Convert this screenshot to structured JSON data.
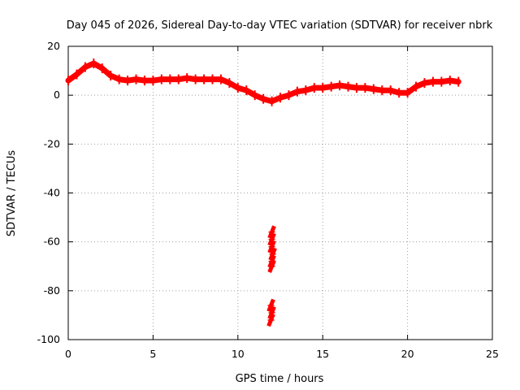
{
  "chart_data": {
    "type": "line",
    "title": "Day 045 of 2026, Sidereal Day-to-day VTEC variation (SDTVAR) for receiver nbrk",
    "xlabel": "GPS time / hours",
    "ylabel": "SDTVAR / TECUs",
    "xlim": [
      0,
      25
    ],
    "ylim": [
      -100,
      20
    ],
    "xticks": [
      "0",
      "5",
      "10",
      "15",
      "20",
      "25"
    ],
    "yticks": [
      "20",
      "0",
      "-20",
      "-40",
      "-60",
      "-80",
      "-100"
    ],
    "grid": true,
    "series": [
      {
        "name": "SDTVAR",
        "color": "#ff0000",
        "x": [
          0.0,
          0.5,
          1.0,
          1.5,
          2.0,
          2.5,
          3.0,
          3.5,
          4.0,
          4.5,
          5.0,
          5.5,
          6.0,
          6.5,
          7.0,
          7.5,
          8.0,
          8.5,
          9.0,
          9.5,
          10.0,
          10.5,
          11.0,
          11.5,
          12.0,
          12.5,
          13.0,
          13.5,
          14.0,
          14.5,
          15.0,
          15.5,
          16.0,
          16.5,
          17.0,
          17.5,
          18.0,
          18.5,
          19.0,
          19.5,
          20.0,
          20.5,
          21.0,
          21.5,
          22.0,
          22.5,
          23.0
        ],
        "y": [
          6,
          8.5,
          11.5,
          13,
          11,
          8,
          6.5,
          6,
          6.5,
          6,
          6,
          6.5,
          6.5,
          6.5,
          7,
          6.5,
          6.5,
          6.5,
          6.5,
          5,
          3,
          2,
          0,
          -1.5,
          -2.5,
          -1,
          0,
          1.5,
          2,
          3,
          3,
          3.5,
          4,
          3.5,
          3,
          3,
          2.5,
          2,
          2,
          1,
          1,
          3.5,
          5,
          5.5,
          5.5,
          6,
          5.5
        ]
      },
      {
        "name": "SDTVAR (outliers)",
        "color": "#ff0000",
        "x": [
          12.0,
          12.0,
          12.0,
          12.05,
          12.0,
          12.0,
          11.95,
          12.0,
          11.95
        ],
        "y": [
          -56,
          -59,
          -62,
          -65,
          -68,
          -70,
          -86,
          -89,
          -92
        ]
      }
    ]
  }
}
